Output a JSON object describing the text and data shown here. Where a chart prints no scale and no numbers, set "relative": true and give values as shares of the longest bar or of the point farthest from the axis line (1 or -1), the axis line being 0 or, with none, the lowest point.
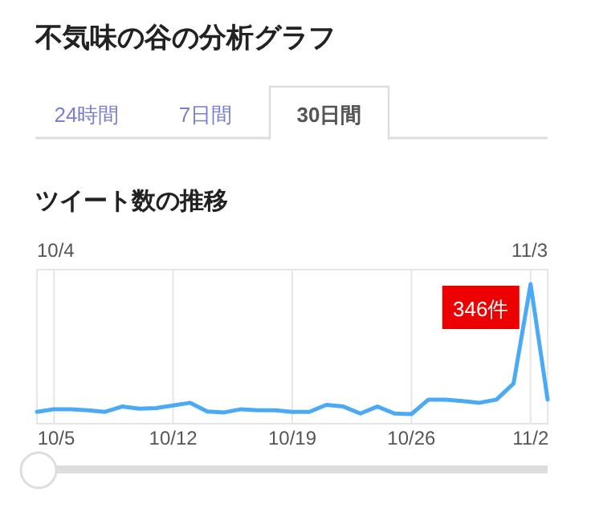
{
  "chart_data": {
    "type": "line",
    "title": "不気味の谷の分析グラフ",
    "subtitle": "ツイート数の推移",
    "annotations": [
      "24時間",
      "7日間",
      "30日間",
      {
        "text": "346件",
        "x": "--11-02",
        "y": 1
      }
    ],
    "relative": true,
    "x": [
      "--10-04",
      "--10-05",
      "--10-06",
      "--10-07",
      "--10-08",
      "--10-09",
      "--10-10",
      "--10-11",
      "--10-12",
      "--10-13",
      "--10-14",
      "--10-15",
      "--10-16",
      "--10-17",
      "--10-18",
      "--10-19",
      "--10-20",
      "--10-21",
      "--10-22",
      "--10-23",
      "--10-24",
      "--10-25",
      "--10-26",
      "--10-27",
      "--10-28",
      "--10-29",
      "--10-30",
      "--10-31",
      "--11-01",
      "--11-02",
      "--11-03"
    ],
    "series": [
      {
        "color": "#4aaaf5",
        "values": [
          0.085,
          0.104,
          0.104,
          0.096,
          0.085,
          0.123,
          0.108,
          0.112,
          0.131,
          0.15,
          0.088,
          0.081,
          0.104,
          0.096,
          0.096,
          0.085,
          0.085,
          0.135,
          0.123,
          0.073,
          0.123,
          0.073,
          0.069,
          0.173,
          0.173,
          0.162,
          0.15,
          0.173,
          0.288,
          1,
          0.173
        ]
      }
    ],
    "xlim": [
      "--10-04",
      "--11-03"
    ],
    "xticks": [
      {
        "value": "--10-05",
        "label": "10/5"
      },
      {
        "value": "--10-12",
        "label": "10/12"
      },
      {
        "value": "--10-19",
        "label": "10/19"
      },
      {
        "value": "--10-26",
        "label": "10/26"
      },
      {
        "value": "--11-02",
        "label": "11/2"
      }
    ],
    "x2lim": [
      "--10-04",
      "--11-03"
    ],
    "x2ticks": [
      {
        "value": "--10-04",
        "label": "10/4"
      },
      {
        "value": "--11-03",
        "label": "11/3"
      }
    ],
    "grid": "x",
    "marker": "none",
    "line_style": "solid"
  }
}
